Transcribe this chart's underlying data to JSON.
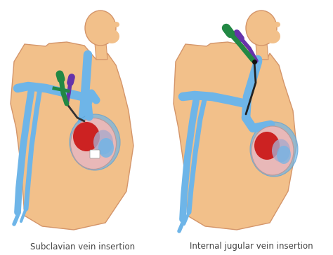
{
  "background_color": "#ffffff",
  "skin_color": "#F2C08A",
  "skin_outline_color": "#D4956A",
  "vein_color": "#6EB5E8",
  "vein_outline_color": "#5A9FD4",
  "heart_outer": "#E8B8B8",
  "heart_red": "#CC2222",
  "heart_pink": "#E8A0A0",
  "heart_blue_gray": "#8AAABB",
  "heart_gray": "#AAAACC",
  "catheter_green": "#228844",
  "catheter_purple": "#6633AA",
  "catheter_dark": "#222222",
  "label_left": "Subclavian vein insertion",
  "label_right": "Internal jugular vein insertion",
  "label_fontsize": 8.5,
  "label_color": "#444444",
  "figure_width": 4.74,
  "figure_height": 3.64,
  "dpi": 100
}
